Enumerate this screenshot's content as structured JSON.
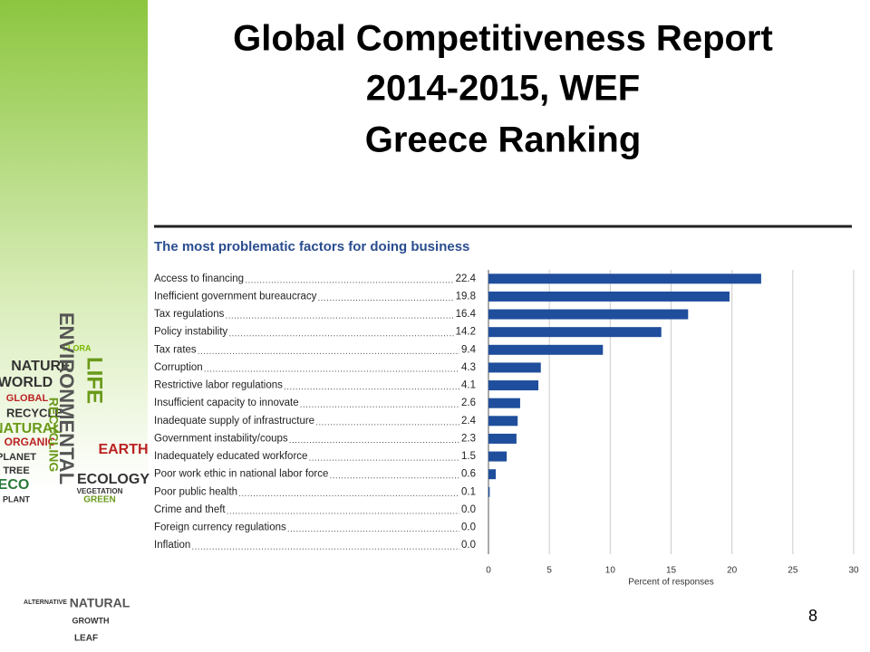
{
  "slide": {
    "title_lines": [
      "Global Competitiveness Report",
      "2014-2015, WEF",
      "Greece Ranking"
    ],
    "number": "8",
    "decoration_words": [
      "FLORA",
      "NATURE",
      "WORLD",
      "GLOBAL",
      "RECYCLE",
      "NATURAL",
      "ORGANIC",
      "PLANET",
      "TREE",
      "ECO",
      "EARTH",
      "PLANT",
      "LIFE",
      "ENVIRONMENTAL",
      "RECYCLING",
      "ECOLOGY",
      "GREEN",
      "VEGETATION",
      "ALTERNATIVE",
      "NATURAL",
      "GROWTH",
      "LEAF"
    ]
  },
  "chart_data": {
    "type": "barh",
    "title": "The most problematic factors for doing business",
    "categories": [
      "Access to financing",
      "Inefficient government bureaucracy",
      "Tax regulations",
      "Policy instability",
      "Tax rates",
      "Corruption",
      "Restrictive labor regulations",
      "Insufficient capacity to innovate",
      "Inadequate supply of infrastructure",
      "Government instability/coups",
      "Inadequately educated workforce",
      "Poor work ethic in national labor force",
      "Poor public health",
      "Crime and theft",
      "Foreign currency regulations",
      "Inflation"
    ],
    "values": [
      22.4,
      19.8,
      16.4,
      14.2,
      9.4,
      4.3,
      4.1,
      2.6,
      2.4,
      2.3,
      1.5,
      0.6,
      0.1,
      0,
      0,
      0
    ],
    "value_labels": [
      "22.4",
      "19.8",
      "16.4",
      "14.2",
      "9.4",
      "4.3",
      "4.1",
      "2.6",
      "2.4",
      "2.3",
      "1.5",
      "0.6",
      "0.1",
      "0.0",
      "0.0",
      "0.0"
    ],
    "color": "#1f4e9c",
    "xlim": [
      0,
      30
    ],
    "xticks": [
      0,
      5,
      10,
      15,
      20,
      25,
      30
    ],
    "xlabel": "Percent of responses",
    "grid": true
  }
}
